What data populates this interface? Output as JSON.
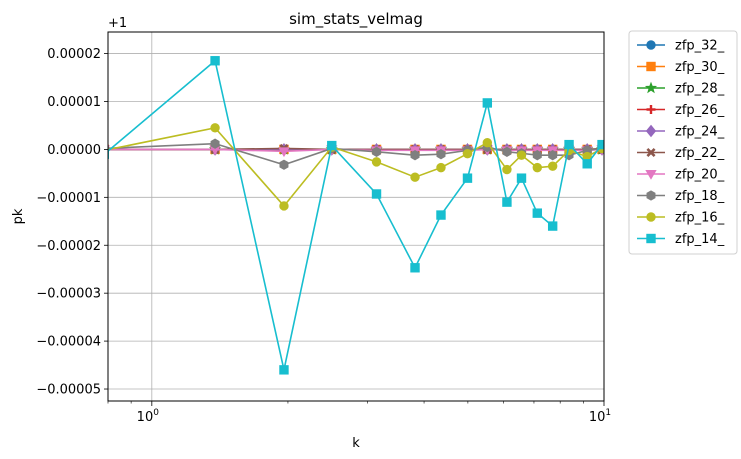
{
  "chart_data": {
    "type": "line",
    "title": "sim_stats_velmag",
    "xlabel": "k",
    "ylabel": "pk",
    "xscale": "log",
    "xlim": [
      0.8,
      10
    ],
    "ylim": [
      -5.25e-05,
      2.45e-05
    ],
    "y_offset_label": "+1",
    "grid": true,
    "legend_position": "outside-right",
    "x_ticks": [
      {
        "value": 1,
        "label": "10",
        "sup": "0"
      },
      {
        "value": 10,
        "label": "10",
        "sup": "1"
      }
    ],
    "y_ticks": [
      {
        "value": 2e-05,
        "label": "0.00002"
      },
      {
        "value": 1e-05,
        "label": "0.00001"
      },
      {
        "value": 0.0,
        "label": "0.00000"
      },
      {
        "value": -1e-05,
        "label": "−0.00001"
      },
      {
        "value": -2e-05,
        "label": "−0.00002"
      },
      {
        "value": -3e-05,
        "label": "−0.00003"
      },
      {
        "value": -4e-05,
        "label": "−0.00004"
      },
      {
        "value": -5e-05,
        "label": "−0.00005"
      }
    ],
    "x": [
      0.785,
      1.38,
      1.96,
      2.5,
      3.14,
      3.82,
      4.36,
      4.99,
      5.52,
      6.1,
      6.57,
      7.12,
      7.7,
      8.37,
      9.18,
      9.9
    ],
    "series": [
      {
        "name": "zfp_32_",
        "color": "#1f77b4",
        "marker": "circle",
        "values": [
          0,
          0,
          0,
          0,
          0,
          0,
          0,
          0,
          0,
          0,
          0,
          0,
          0,
          0,
          0,
          0
        ]
      },
      {
        "name": "zfp_30_",
        "color": "#ff7f0e",
        "marker": "square",
        "values": [
          0,
          0,
          0,
          0,
          0,
          0,
          0,
          0,
          0,
          0,
          0,
          0,
          0,
          0,
          0,
          0
        ]
      },
      {
        "name": "zfp_28_",
        "color": "#2ca02c",
        "marker": "star",
        "values": [
          0,
          0,
          0,
          0,
          0,
          0,
          0,
          0,
          0,
          0,
          0,
          0,
          0,
          0,
          0,
          0
        ]
      },
      {
        "name": "zfp_26_",
        "color": "#d62728",
        "marker": "plus",
        "values": [
          0,
          0,
          0,
          0,
          0,
          0,
          0,
          0,
          0,
          0,
          0,
          0,
          0,
          0,
          0,
          0
        ]
      },
      {
        "name": "zfp_24_",
        "color": "#9467bd",
        "marker": "diamond",
        "values": [
          0,
          0,
          0,
          0,
          0,
          0,
          0,
          0,
          0,
          0,
          0,
          0,
          0,
          0,
          0,
          0
        ]
      },
      {
        "name": "zfp_22_",
        "color": "#8c564b",
        "marker": "x",
        "values": [
          0,
          0,
          2e-07,
          0,
          0,
          0,
          0,
          0,
          0,
          0,
          0,
          0,
          0,
          0,
          0,
          2e-07
        ]
      },
      {
        "name": "zfp_20_",
        "color": "#e377c2",
        "marker": "triangle-down",
        "values": [
          0,
          0,
          -4e-07,
          0,
          -2e-07,
          -2e-07,
          -2e-07,
          -2e-07,
          0,
          -2e-07,
          -2e-07,
          -2e-07,
          -2e-07,
          -2e-07,
          -2e-07,
          0
        ]
      },
      {
        "name": "zfp_18_",
        "color": "#7f7f7f",
        "marker": "hexagon",
        "values": [
          2e-07,
          1.2e-06,
          -3.2e-06,
          2e-07,
          -5e-07,
          -1.2e-06,
          -1e-06,
          -2e-07,
          5e-07,
          -5e-07,
          -8e-07,
          -1.2e-06,
          -1.2e-06,
          -1.2e-06,
          -2e-07,
          2e-07
        ]
      },
      {
        "name": "zfp_16_",
        "color": "#bcbd22",
        "marker": "circle",
        "values": [
          -2e-07,
          4.5e-06,
          -1.18e-05,
          5e-07,
          -2.6e-06,
          -5.8e-06,
          -3.8e-06,
          -9e-07,
          1.4e-06,
          -4.2e-06,
          -1.2e-06,
          -3.8e-06,
          -3.5e-06,
          -2e-07,
          -1.5e-06,
          2e-07
        ]
      },
      {
        "name": "zfp_14_",
        "color": "#17becf",
        "marker": "square",
        "values": [
          -1e-06,
          1.85e-05,
          -4.6e-05,
          8e-07,
          -9.3e-06,
          -2.47e-05,
          -1.37e-05,
          -6e-06,
          9.7e-06,
          -1.1e-05,
          -6e-06,
          -1.33e-05,
          -1.6e-05,
          1e-06,
          -3e-06,
          1e-06
        ]
      }
    ]
  }
}
